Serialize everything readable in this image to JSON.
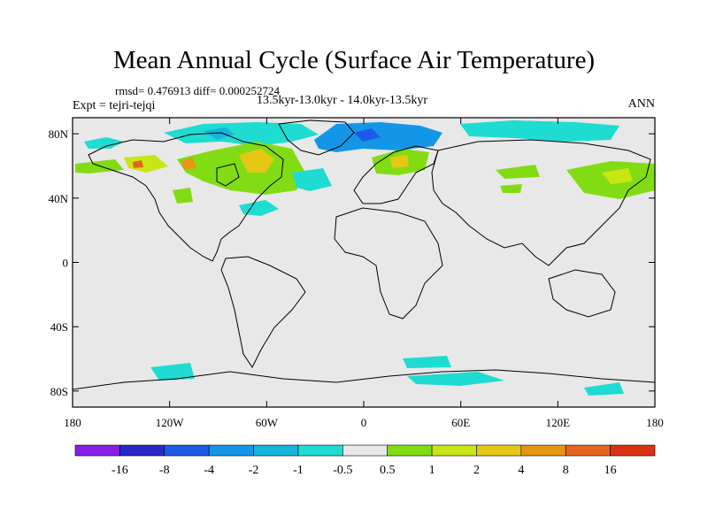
{
  "title": "Mean Annual Cycle (Surface Air Temperature)",
  "stats": "rmsd= 0.476913 diff= 0.000252724",
  "expt": "Expt = tejri-tejqi",
  "period": "13.5kyr-13.0kyr - 14.0kyr-13.5kyr",
  "season": "ANN",
  "map": {
    "lon_range": [
      -180,
      180
    ],
    "lat_range": [
      -90,
      90
    ],
    "background_color": "#e8e8e8",
    "lat_ticks": [
      {
        "value": 80,
        "label": "80N"
      },
      {
        "value": 40,
        "label": "40N"
      },
      {
        "value": 0,
        "label": "0"
      },
      {
        "value": -40,
        "label": "40S"
      },
      {
        "value": -80,
        "label": "80S"
      }
    ],
    "lon_ticks": [
      {
        "value": -180,
        "label": "180"
      },
      {
        "value": -120,
        "label": "120W"
      },
      {
        "value": -60,
        "label": "60W"
      },
      {
        "value": 0,
        "label": "0"
      },
      {
        "value": 60,
        "label": "60E"
      },
      {
        "value": 120,
        "label": "120E"
      },
      {
        "value": 180,
        "label": "180"
      }
    ]
  },
  "colorbar": {
    "colors": [
      "#8a1ee6",
      "#2828c8",
      "#1e5ae6",
      "#1496e6",
      "#14b4dc",
      "#1edcd2",
      "#e8e8e8",
      "#82dc14",
      "#c8e614",
      "#e6c814",
      "#e69614",
      "#e6641e",
      "#dc3214"
    ],
    "labels": [
      "-16",
      "-8",
      "-4",
      "-2",
      "-1",
      "-0.5",
      "0.5",
      "1",
      "2",
      "4",
      "8",
      "16"
    ]
  }
}
